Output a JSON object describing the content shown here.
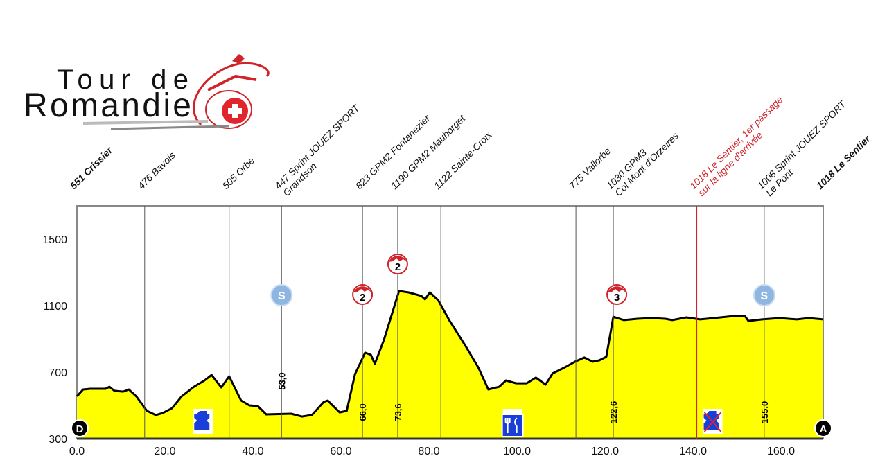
{
  "logo": {
    "line1": "Tour de",
    "line2": "Romandie"
  },
  "chart_data": {
    "type": "area",
    "title": "",
    "xlabel": "",
    "ylabel": "",
    "xlim": [
      0,
      170
    ],
    "ylim": [
      300,
      1700
    ],
    "x_ticks": [
      "0.0",
      "20.0",
      "40.0",
      "60.0",
      "80.0",
      "100.0",
      "120.0",
      "140.0",
      "160.0"
    ],
    "y_ticks": [
      "300",
      "700",
      "1100",
      "1500"
    ],
    "grid": false,
    "fill_color": "#ffff00",
    "line_color": "#000000",
    "profile": [
      [
        0,
        554
      ],
      [
        1.4,
        596
      ],
      [
        3,
        600
      ],
      [
        6.5,
        600
      ],
      [
        7.4,
        612
      ],
      [
        8.5,
        588
      ],
      [
        10.5,
        583
      ],
      [
        11.8,
        596
      ],
      [
        13.5,
        554
      ],
      [
        15.9,
        467
      ],
      [
        17.9,
        442
      ],
      [
        19.5,
        454
      ],
      [
        21.6,
        483
      ],
      [
        23.8,
        554
      ],
      [
        26.6,
        612
      ],
      [
        29,
        650
      ],
      [
        30.6,
        683
      ],
      [
        32.8,
        608
      ],
      [
        34.6,
        675
      ],
      [
        37.3,
        529
      ],
      [
        39.2,
        500
      ],
      [
        41.1,
        496
      ],
      [
        43,
        446
      ],
      [
        48.7,
        450
      ],
      [
        51.1,
        433
      ],
      [
        53.4,
        442
      ],
      [
        56.1,
        521
      ],
      [
        57,
        529
      ],
      [
        59.7,
        458
      ],
      [
        61.3,
        467
      ],
      [
        63.2,
        688
      ],
      [
        65.5,
        817
      ],
      [
        66.8,
        804
      ],
      [
        67.7,
        750
      ],
      [
        69.8,
        896
      ],
      [
        73.2,
        1188
      ],
      [
        75.4,
        1179
      ],
      [
        78.3,
        1158
      ],
      [
        79.1,
        1138
      ],
      [
        80.2,
        1179
      ],
      [
        82.1,
        1133
      ],
      [
        84.6,
        1013
      ],
      [
        88.1,
        867
      ],
      [
        91.2,
        729
      ],
      [
        93.5,
        596
      ],
      [
        96,
        612
      ],
      [
        97.5,
        650
      ],
      [
        99.8,
        633
      ],
      [
        102.2,
        633
      ],
      [
        104.3,
        667
      ],
      [
        106.5,
        625
      ],
      [
        108.1,
        692
      ],
      [
        110.9,
        729
      ],
      [
        113.2,
        763
      ],
      [
        115.3,
        788
      ],
      [
        117.2,
        763
      ],
      [
        118.7,
        771
      ],
      [
        120.3,
        792
      ],
      [
        121.9,
        1033
      ],
      [
        124.3,
        1013
      ],
      [
        127.4,
        1021
      ],
      [
        130.6,
        1025
      ],
      [
        133.7,
        1021
      ],
      [
        135.3,
        1013
      ],
      [
        138.5,
        1029
      ],
      [
        141.6,
        1017
      ],
      [
        144.7,
        1025
      ],
      [
        149.5,
        1038
      ],
      [
        151.8,
        1038
      ],
      [
        152.6,
        1008
      ],
      [
        155.7,
        1017
      ],
      [
        159.7,
        1025
      ],
      [
        163.6,
        1017
      ],
      [
        166.3,
        1025
      ],
      [
        169.6,
        1017
      ]
    ],
    "waypoints": [
      {
        "x": 0,
        "lines": [
          "551 Crissier"
        ],
        "bold": true,
        "line": false
      },
      {
        "x": 15.4,
        "lines": [
          "476 Bavois"
        ],
        "line": true
      },
      {
        "x": 34.6,
        "lines": [
          "505 Orbe"
        ],
        "line": true
      },
      {
        "x": 46.5,
        "lines": [
          "447 Sprint JOUEZ SPORT",
          "Grandson"
        ],
        "line": true,
        "km_label": "53,0",
        "icon": "sprint"
      },
      {
        "x": 64.9,
        "lines": [
          "823 GPM2 Fontanezier"
        ],
        "line": true,
        "km_label": "66,0",
        "icon": "climb",
        "cat": "2"
      },
      {
        "x": 72.9,
        "lines": [
          "1190 GPM2 Mauborget"
        ],
        "line": true,
        "km_label": "73,6",
        "icon": "climb",
        "cat": "2"
      },
      {
        "x": 82.7,
        "lines": [
          "1122 Sainte-Croix"
        ],
        "line": true
      },
      {
        "x": 113.4,
        "lines": [
          "775 Vallorbe"
        ],
        "line": true
      },
      {
        "x": 121.9,
        "lines": [
          "1030 GPM3",
          "Col Mont d'Orzeires"
        ],
        "line": true,
        "km_label": "122,6",
        "icon": "climb",
        "cat": "3"
      },
      {
        "x": 140.8,
        "lines": [
          "1018 Le Sentier, 1er passage",
          "sur la ligne d'arrivée"
        ],
        "line": true,
        "color": "#d0232a"
      },
      {
        "x": 156.2,
        "lines": [
          "1008 Sprint JOUEZ SPORT",
          "Le Pont"
        ],
        "line": true,
        "km_label": "155,0",
        "icon": "sprint"
      },
      {
        "x": 169.6,
        "lines": [
          "1018 Le Sentier"
        ],
        "bold": true,
        "line": false
      }
    ],
    "markers": {
      "start": "D",
      "finish": "A",
      "sprint": "S"
    },
    "zone_icons": [
      {
        "x": 28.7,
        "icon": "bottle-icon"
      },
      {
        "x": 99.0,
        "icon": "feed-zone-icon"
      },
      {
        "x": 144.5,
        "icon": "no-bottle-icon"
      }
    ]
  }
}
